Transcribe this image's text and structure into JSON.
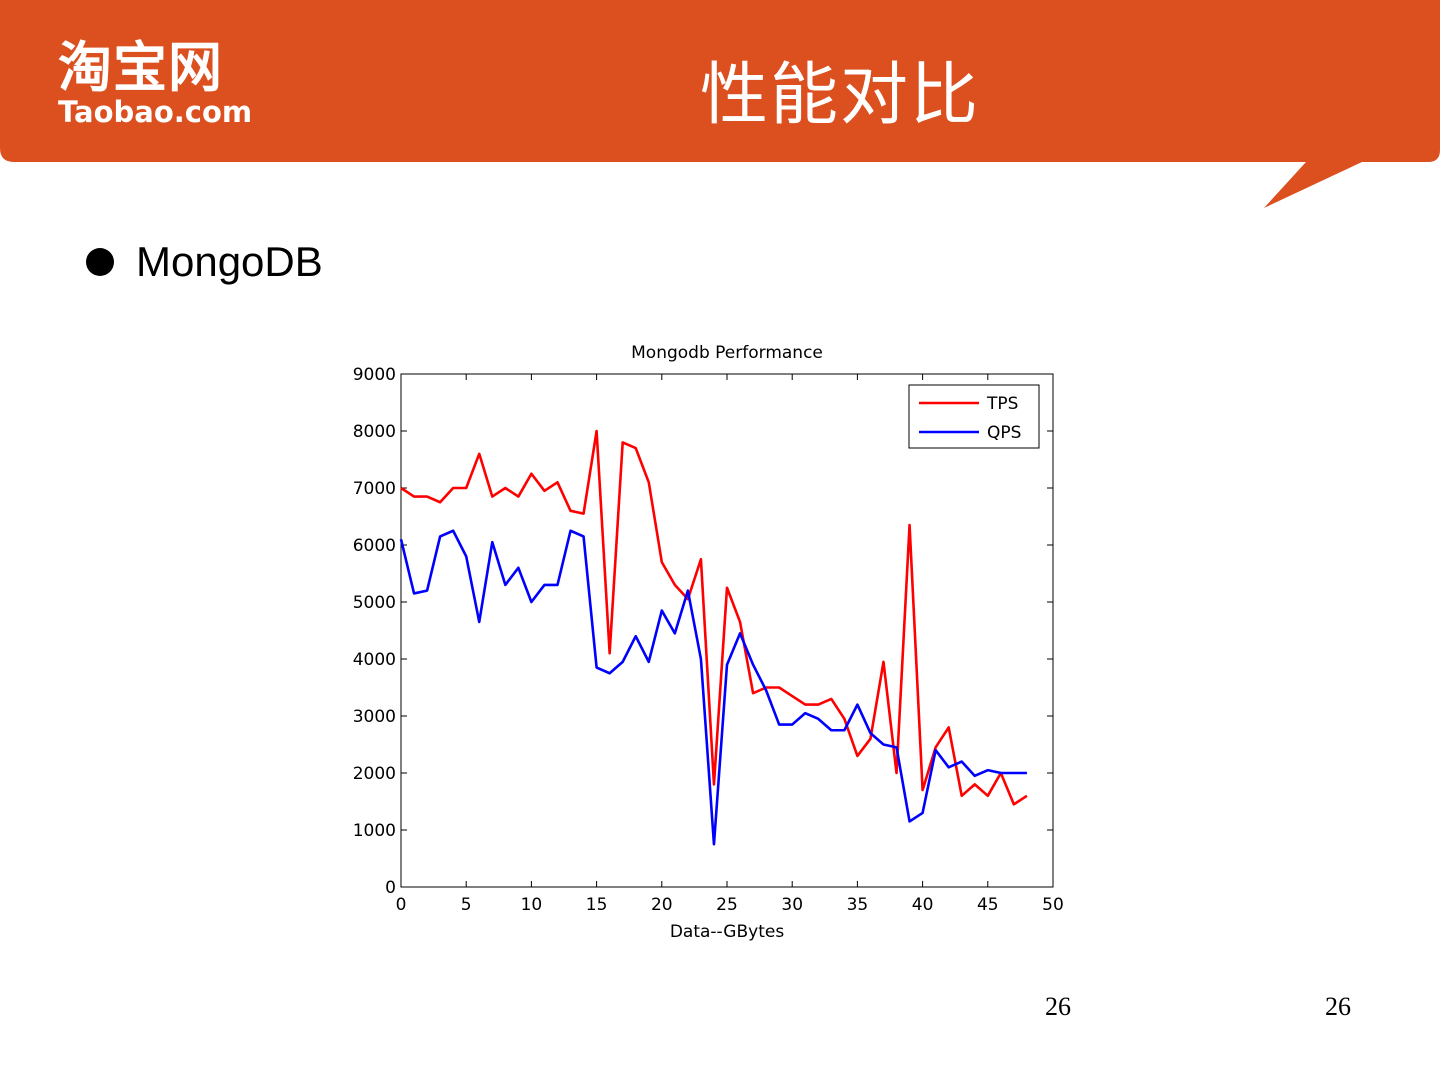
{
  "header": {
    "logo_cn": "淘宝网",
    "logo_en": "Taobao.com",
    "title": "性能对比",
    "banner_color": "#DC4F1E"
  },
  "bullet": {
    "text": "MongoDB"
  },
  "chart_data": {
    "type": "line",
    "title": "Mongodb Performance",
    "xlabel": "Data--GBytes",
    "ylabel": "",
    "xlim": [
      0,
      50
    ],
    "ylim": [
      0,
      9000
    ],
    "x_ticks": [
      0,
      5,
      10,
      15,
      20,
      25,
      30,
      35,
      40,
      45,
      50
    ],
    "y_ticks": [
      0,
      1000,
      2000,
      3000,
      4000,
      5000,
      6000,
      7000,
      8000,
      9000
    ],
    "grid": false,
    "legend_position": "top-right",
    "x": [
      0,
      1,
      2,
      3,
      4,
      5,
      6,
      7,
      8,
      9,
      10,
      11,
      12,
      13,
      14,
      15,
      16,
      17,
      18,
      19,
      20,
      21,
      22,
      23,
      24,
      25,
      26,
      27,
      28,
      29,
      30,
      31,
      32,
      33,
      34,
      35,
      36,
      37,
      38,
      39,
      40,
      41,
      42,
      43,
      44,
      45,
      46,
      47,
      48
    ],
    "series": [
      {
        "name": "TPS",
        "color": "#FF0000",
        "values": [
          7000,
          6850,
          6850,
          6750,
          7000,
          7000,
          7600,
          6850,
          7000,
          6850,
          7250,
          6950,
          7100,
          6600,
          6550,
          8000,
          4100,
          7800,
          7700,
          7100,
          5700,
          5300,
          5050,
          5750,
          1800,
          5250,
          4650,
          3400,
          3500,
          3500,
          3350,
          3200,
          3200,
          3300,
          2950,
          2300,
          2600,
          3950,
          2000,
          6350,
          1700,
          2450,
          2800,
          1600,
          1800,
          1600,
          2000,
          1450,
          1600
        ]
      },
      {
        "name": "QPS",
        "color": "#0000FF",
        "values": [
          6100,
          5150,
          5200,
          6150,
          6250,
          5800,
          4650,
          6050,
          5300,
          5600,
          5000,
          5300,
          5300,
          6250,
          6150,
          3850,
          3750,
          3950,
          4400,
          3950,
          4850,
          4450,
          5200,
          4000,
          750,
          3900,
          4450,
          3900,
          3450,
          2850,
          2850,
          3050,
          2950,
          2750,
          2750,
          3200,
          2700,
          2500,
          2450,
          1150,
          1300,
          2400,
          2100,
          2200,
          1950,
          2050,
          2000,
          2000,
          2000
        ]
      }
    ]
  },
  "footer": {
    "page_number_1": "26",
    "page_number_2": "26"
  }
}
